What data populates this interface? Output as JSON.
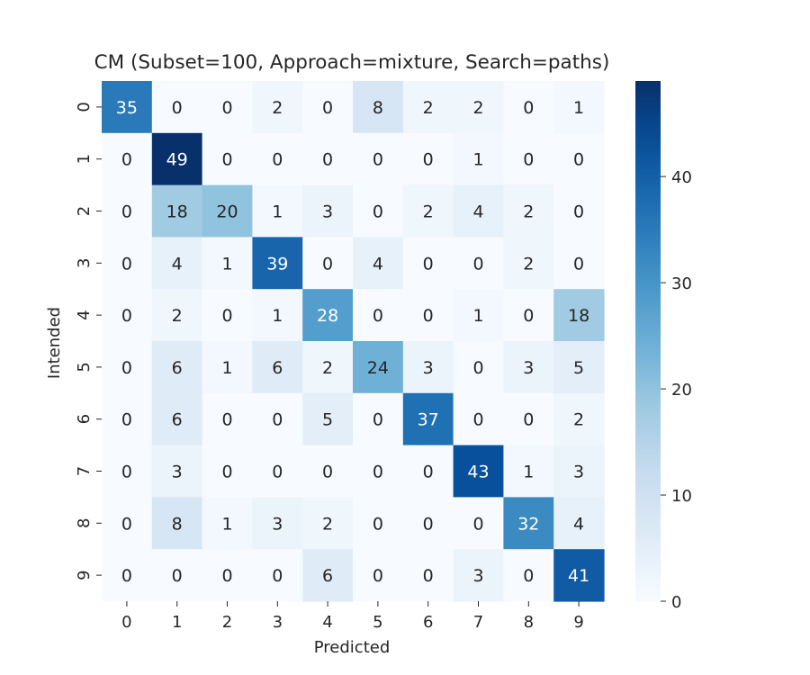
{
  "chart_data": {
    "type": "heatmap",
    "title": "CM (Subset=100, Approach=mixture, Search=paths)",
    "xlabel": "Predicted",
    "ylabel": "Intended",
    "x_ticks": [
      "0",
      "1",
      "2",
      "3",
      "4",
      "5",
      "6",
      "7",
      "8",
      "9"
    ],
    "y_ticks": [
      "0",
      "1",
      "2",
      "3",
      "4",
      "5",
      "6",
      "7",
      "8",
      "9"
    ],
    "matrix": [
      [
        35,
        0,
        0,
        2,
        0,
        8,
        2,
        2,
        0,
        1
      ],
      [
        0,
        49,
        0,
        0,
        0,
        0,
        0,
        1,
        0,
        0
      ],
      [
        0,
        18,
        20,
        1,
        3,
        0,
        2,
        4,
        2,
        0
      ],
      [
        0,
        4,
        1,
        39,
        0,
        4,
        0,
        0,
        2,
        0
      ],
      [
        0,
        2,
        0,
        1,
        28,
        0,
        0,
        1,
        0,
        18
      ],
      [
        0,
        6,
        1,
        6,
        2,
        24,
        3,
        0,
        3,
        5
      ],
      [
        0,
        6,
        0,
        0,
        5,
        0,
        37,
        0,
        0,
        2
      ],
      [
        0,
        3,
        0,
        0,
        0,
        0,
        0,
        43,
        1,
        3
      ],
      [
        0,
        8,
        1,
        3,
        2,
        0,
        0,
        0,
        32,
        4
      ],
      [
        0,
        0,
        0,
        0,
        6,
        0,
        0,
        3,
        0,
        41
      ]
    ],
    "colormap": "Blues",
    "colorbar": {
      "range": [
        0,
        49
      ],
      "ticks": [
        "0",
        "10",
        "20",
        "30",
        "40"
      ]
    },
    "colors": {
      "low": "#f7fbff",
      "high": "#08306b",
      "text_dark": "#262626",
      "text_light": "#ffffff"
    }
  }
}
